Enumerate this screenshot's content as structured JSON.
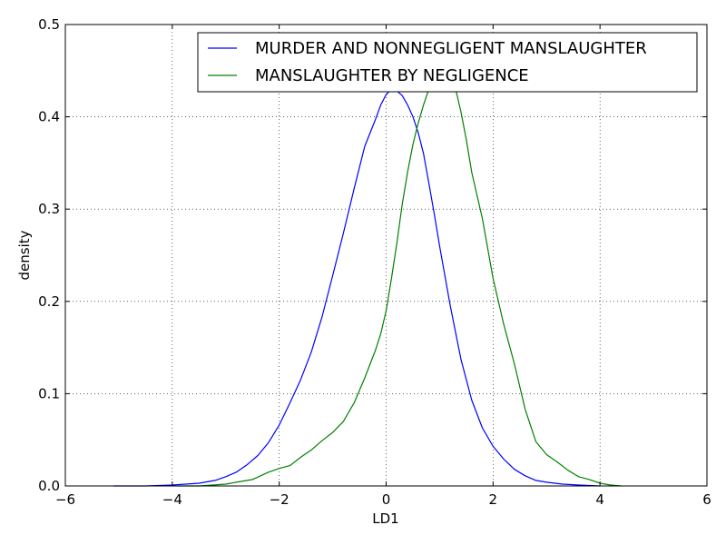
{
  "chart_data": {
    "type": "line",
    "title": "",
    "xlabel": "LD1",
    "ylabel": "density",
    "xlim": [
      -6,
      6
    ],
    "ylim": [
      0,
      0.5
    ],
    "xticks": [
      -6,
      -4,
      -2,
      0,
      2,
      4,
      6
    ],
    "xtick_labels": [
      "−6",
      "−4",
      "−2",
      "0",
      "2",
      "4",
      "6"
    ],
    "yticks": [
      0.0,
      0.1,
      0.2,
      0.3,
      0.4,
      0.5
    ],
    "ytick_labels": [
      "0.0",
      "0.1",
      "0.2",
      "0.3",
      "0.4",
      "0.5"
    ],
    "grid": true,
    "legend_position": "top-right",
    "series": [
      {
        "name": "MURDER AND NONNEGLIGENT MANSLAUGHTER",
        "color": "#0000ff",
        "points": [
          [
            -5.1,
            0.0
          ],
          [
            -4.5,
            0.0
          ],
          [
            -4.0,
            0.001
          ],
          [
            -3.5,
            0.003
          ],
          [
            -3.2,
            0.006
          ],
          [
            -3.0,
            0.01
          ],
          [
            -2.8,
            0.015
          ],
          [
            -2.6,
            0.023
          ],
          [
            -2.4,
            0.033
          ],
          [
            -2.2,
            0.047
          ],
          [
            -2.0,
            0.066
          ],
          [
            -1.8,
            0.09
          ],
          [
            -1.6,
            0.115
          ],
          [
            -1.4,
            0.145
          ],
          [
            -1.2,
            0.183
          ],
          [
            -1.0,
            0.228
          ],
          [
            -0.8,
            0.274
          ],
          [
            -0.6,
            0.322
          ],
          [
            -0.4,
            0.368
          ],
          [
            -0.2,
            0.397
          ],
          [
            -0.1,
            0.413
          ],
          [
            0.0,
            0.424
          ],
          [
            0.1,
            0.43
          ],
          [
            0.2,
            0.428
          ],
          [
            0.3,
            0.423
          ],
          [
            0.4,
            0.413
          ],
          [
            0.5,
            0.4
          ],
          [
            0.6,
            0.383
          ],
          [
            0.7,
            0.36
          ],
          [
            0.8,
            0.328
          ],
          [
            0.9,
            0.295
          ],
          [
            1.0,
            0.26
          ],
          [
            1.2,
            0.195
          ],
          [
            1.4,
            0.137
          ],
          [
            1.6,
            0.093
          ],
          [
            1.8,
            0.063
          ],
          [
            2.0,
            0.043
          ],
          [
            2.2,
            0.029
          ],
          [
            2.4,
            0.018
          ],
          [
            2.6,
            0.011
          ],
          [
            2.8,
            0.006
          ],
          [
            3.0,
            0.004
          ],
          [
            3.3,
            0.002
          ],
          [
            3.6,
            0.001
          ],
          [
            4.0,
            0.0
          ]
        ]
      },
      {
        "name": "MANSLAUGHTER BY NEGLIGENCE",
        "color": "#008000",
        "points": [
          [
            -3.9,
            0.0
          ],
          [
            -3.5,
            0.0
          ],
          [
            -3.0,
            0.002
          ],
          [
            -2.8,
            0.004
          ],
          [
            -2.5,
            0.007
          ],
          [
            -2.2,
            0.015
          ],
          [
            -2.0,
            0.019
          ],
          [
            -1.8,
            0.022
          ],
          [
            -1.6,
            0.031
          ],
          [
            -1.4,
            0.039
          ],
          [
            -1.2,
            0.049
          ],
          [
            -1.0,
            0.058
          ],
          [
            -0.8,
            0.07
          ],
          [
            -0.6,
            0.09
          ],
          [
            -0.4,
            0.117
          ],
          [
            -0.2,
            0.147
          ],
          [
            -0.1,
            0.165
          ],
          [
            0.0,
            0.19
          ],
          [
            0.1,
            0.225
          ],
          [
            0.2,
            0.263
          ],
          [
            0.3,
            0.305
          ],
          [
            0.4,
            0.34
          ],
          [
            0.5,
            0.37
          ],
          [
            0.6,
            0.393
          ],
          [
            0.7,
            0.413
          ],
          [
            0.8,
            0.43
          ],
          [
            0.9,
            0.44
          ],
          [
            1.0,
            0.445
          ],
          [
            1.1,
            0.447
          ],
          [
            1.2,
            0.445
          ],
          [
            1.3,
            0.43
          ],
          [
            1.4,
            0.405
          ],
          [
            1.5,
            0.375
          ],
          [
            1.6,
            0.34
          ],
          [
            1.8,
            0.29
          ],
          [
            2.0,
            0.225
          ],
          [
            2.2,
            0.175
          ],
          [
            2.4,
            0.132
          ],
          [
            2.6,
            0.083
          ],
          [
            2.8,
            0.048
          ],
          [
            3.0,
            0.034
          ],
          [
            3.2,
            0.026
          ],
          [
            3.4,
            0.017
          ],
          [
            3.6,
            0.01
          ],
          [
            3.8,
            0.007
          ],
          [
            4.0,
            0.003
          ],
          [
            4.2,
            0.001
          ],
          [
            4.4,
            0.0
          ]
        ]
      }
    ]
  }
}
